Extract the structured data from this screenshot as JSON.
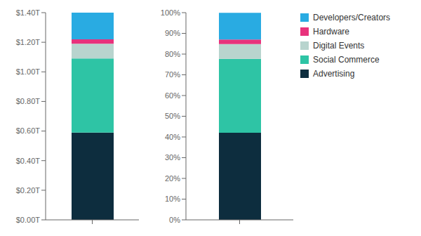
{
  "chart_data": [
    {
      "type": "bar",
      "stacked": true,
      "grid": false,
      "categories": [
        null
      ],
      "ylim": [
        0,
        1.4
      ],
      "yticks": [
        {
          "value": 0,
          "label": "$0.00T"
        },
        {
          "value": 0.2,
          "label": "$0.20T"
        },
        {
          "value": 0.4,
          "label": "$0.40T"
        },
        {
          "value": 0.6,
          "label": "$0.60T"
        },
        {
          "value": 0.8,
          "label": "$0.80T"
        },
        {
          "value": 1.0,
          "label": "$1.00T"
        },
        {
          "value": 1.2,
          "label": "$1.20T"
        },
        {
          "value": 1.4,
          "label": "$1.40T"
        }
      ],
      "series": [
        {
          "name": "Advertising",
          "color": "#0d2d3e",
          "values": [
            0.59
          ]
        },
        {
          "name": "Social Commerce",
          "color": "#2ec4a5",
          "values": [
            0.5
          ]
        },
        {
          "name": "Digital Events",
          "color": "#b8d4ce",
          "values": [
            0.1
          ]
        },
        {
          "name": "Hardware",
          "color": "#e8327c",
          "values": [
            0.03
          ]
        },
        {
          "name": "Developers/Creators",
          "color": "#29abe2",
          "values": [
            0.18
          ]
        }
      ]
    },
    {
      "type": "bar",
      "stacked": true,
      "grid": false,
      "legend": "upper right",
      "categories": [
        null
      ],
      "ylim": [
        0,
        100
      ],
      "yticks": [
        {
          "value": 0,
          "label": "0%"
        },
        {
          "value": 10,
          "label": "10%"
        },
        {
          "value": 20,
          "label": "20%"
        },
        {
          "value": 30,
          "label": "30%"
        },
        {
          "value": 40,
          "label": "40%"
        },
        {
          "value": 50,
          "label": "50%"
        },
        {
          "value": 60,
          "label": "60%"
        },
        {
          "value": 70,
          "label": "70%"
        },
        {
          "value": 80,
          "label": "80%"
        },
        {
          "value": 90,
          "label": "90%"
        },
        {
          "value": 100,
          "label": "100%"
        }
      ],
      "series": [
        {
          "name": "Advertising",
          "color": "#0d2d3e",
          "values": [
            42.0
          ]
        },
        {
          "name": "Social Commerce",
          "color": "#2ec4a5",
          "values": [
            35.7
          ]
        },
        {
          "name": "Digital Events",
          "color": "#b8d4ce",
          "values": [
            7.1
          ]
        },
        {
          "name": "Hardware",
          "color": "#e8327c",
          "values": [
            2.2
          ]
        },
        {
          "name": "Developers/Creators",
          "color": "#29abe2",
          "values": [
            12.9
          ]
        }
      ]
    }
  ]
}
